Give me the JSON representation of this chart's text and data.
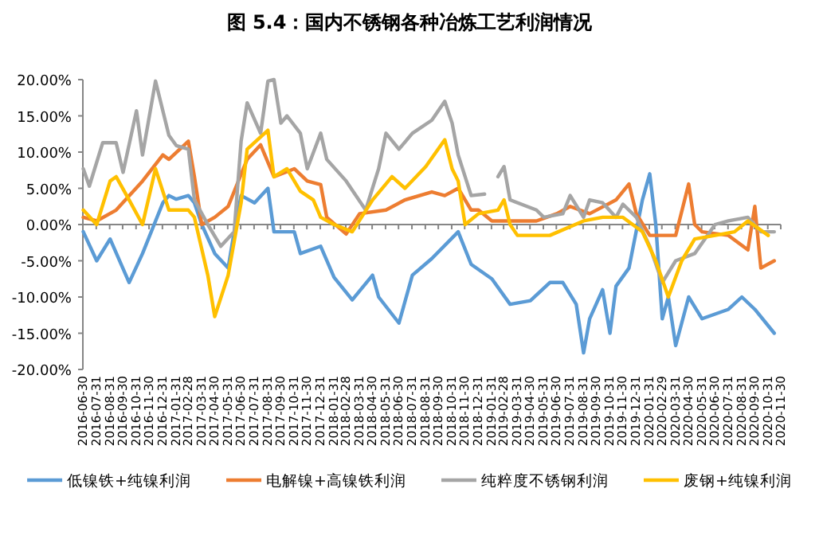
{
  "chart_data": {
    "type": "line",
    "title": "图 5.4：国内不锈钢各种冶炼工艺利润情况",
    "xlim": [
      "2016-06-30",
      "2020-11-30"
    ],
    "xticks": [
      "2016-06-30",
      "2016-07-31",
      "2016-08-31",
      "2016-09-30",
      "2016-10-31",
      "2016-11-30",
      "2016-12-31",
      "2017-01-31",
      "2017-02-28",
      "2017-03-31",
      "2017-04-30",
      "2017-05-31",
      "2017-06-30",
      "2017-07-31",
      "2017-08-31",
      "2017-09-30",
      "2017-10-31",
      "2017-11-30",
      "2017-12-31",
      "2018-01-31",
      "2018-02-28",
      "2018-03-31",
      "2018-04-30",
      "2018-05-31",
      "2018-06-30",
      "2018-07-31",
      "2018-08-31",
      "2018-09-30",
      "2018-10-31",
      "2018-11-30",
      "2018-12-31",
      "2019-01-31",
      "2019-02-28",
      "2019-03-31",
      "2019-04-30",
      "2019-05-31",
      "2019-06-30",
      "2019-07-31",
      "2019-08-31",
      "2019-09-30",
      "2019-10-31",
      "2019-11-30",
      "2019-12-31",
      "2020-01-31",
      "2020-02-29",
      "2020-03-31",
      "2020-04-30",
      "2020-05-31",
      "2020-06-30",
      "2020-07-31",
      "2020-08-31",
      "2020-09-30",
      "2020-10-31",
      "2020-11-30"
    ],
    "ylim": [
      -20,
      20
    ],
    "yticks": [
      {
        "value": -20,
        "label": "-20.00%"
      },
      {
        "value": -15,
        "label": "-15.00%"
      },
      {
        "value": -10,
        "label": "-10.00%"
      },
      {
        "value": -5,
        "label": "-5.00%"
      },
      {
        "value": 0,
        "label": "0.00%"
      },
      {
        "value": 5,
        "label": "5.00%"
      },
      {
        "value": 10,
        "label": "10.00%"
      },
      {
        "value": 15,
        "label": "15.00%"
      },
      {
        "value": 20,
        "label": "20.00%"
      }
    ],
    "legend": "bottom",
    "series": [
      {
        "name": "低镍铁+纯镍利润",
        "color": "#5b9bd5",
        "x": [
          "2016-07-01",
          "2016-08-01",
          "2016-09-01",
          "2016-10-15",
          "2016-11-15",
          "2017-01-01",
          "2017-01-15",
          "2017-02-01",
          "2017-03-01",
          "2017-03-15",
          "2017-04-01",
          "2017-05-01",
          "2017-06-01",
          "2017-06-15",
          "2017-07-01",
          "2017-08-01",
          "2017-09-01",
          "2017-09-15",
          "2017-11-01",
          "2017-11-15",
          "2018-01-01",
          "2018-02-01",
          "2018-03-15",
          "2018-05-01",
          "2018-05-15",
          "2018-07-01",
          "2018-08-01",
          "2018-09-15",
          "2018-11-15",
          "2018-12-15",
          "2019-02-01",
          "2019-03-15",
          "2019-05-01",
          "2019-06-15",
          "2019-07-15",
          "2019-08-15",
          "2019-09-01",
          "2019-09-15",
          "2019-10-15",
          "2019-11-01",
          "2019-11-15",
          "2019-12-15",
          "2020-01-15",
          "2020-02-01",
          "2020-02-15",
          "2020-03-01",
          "2020-03-15",
          "2020-04-01",
          "2020-05-01",
          "2020-06-01",
          "2020-08-01",
          "2020-09-01",
          "2020-10-01",
          "2020-11-15"
        ],
        "values": [
          -1,
          -5,
          -2,
          -8,
          -4,
          3,
          4,
          3.5,
          4,
          3,
          0,
          -4,
          -6,
          -1,
          4,
          3,
          5,
          -1,
          -1,
          -4,
          -3,
          -7.3,
          -10.4,
          -7,
          -10,
          -13.6,
          -7,
          -4.7,
          -1,
          -5.5,
          -7.5,
          -11,
          -10.5,
          -8,
          -8,
          -11,
          -17.7,
          -13,
          -9,
          -15,
          -8.5,
          -6,
          3.4,
          7,
          0,
          -13,
          -10,
          -16.7,
          -10,
          -13,
          -11.7,
          -10,
          -11.7,
          -15
        ]
      },
      {
        "name": "电解镍+高镍铁利润",
        "color": "#ed7d31",
        "x": [
          "2016-07-01",
          "2016-08-01",
          "2016-09-15",
          "2016-11-15",
          "2017-01-01",
          "2017-01-15",
          "2017-03-01",
          "2017-03-15",
          "2017-04-01",
          "2017-05-01",
          "2017-06-01",
          "2017-07-15",
          "2017-08-15",
          "2017-09-15",
          "2017-11-01",
          "2017-12-01",
          "2018-01-01",
          "2018-01-15",
          "2018-03-01",
          "2018-04-01",
          "2018-06-01",
          "2018-07-15",
          "2018-09-15",
          "2018-10-15",
          "2018-11-15",
          "2018-12-15",
          "2019-01-01",
          "2019-02-01",
          "2019-05-15",
          "2019-07-01",
          "2019-08-01",
          "2019-09-15",
          "2019-11-15",
          "2019-12-15",
          "2020-01-01",
          "2020-02-01",
          "2020-04-01",
          "2020-05-01",
          "2020-05-15",
          "2020-06-01",
          "2020-08-01",
          "2020-09-15",
          "2020-10-01",
          "2020-10-15",
          "2020-11-15"
        ],
        "values": [
          1,
          0.5,
          2,
          6,
          9.6,
          9,
          11.5,
          6.6,
          0,
          1,
          2.5,
          9,
          11,
          6.6,
          7.7,
          6,
          5.5,
          1,
          -1.3,
          1.5,
          2,
          3.4,
          4.5,
          4,
          5,
          2,
          2,
          0.5,
          0.5,
          1.5,
          2.5,
          1.5,
          3.4,
          5.6,
          1.5,
          -1.5,
          -1.5,
          5.6,
          0,
          -1,
          -1.5,
          -3.5,
          2.5,
          -6,
          -5
        ]
      },
      {
        "name": "纯粹度不锈钢利润",
        "color": "#a5a5a5",
        "x": [
          "2016-07-01",
          "2016-07-15",
          "2016-08-15",
          "2016-09-15",
          "2016-10-01",
          "2016-11-01",
          "2016-11-15",
          "2016-12-15",
          "2017-01-15",
          "2017-02-01",
          "2017-03-01",
          "2017-03-15",
          "2017-04-15",
          "2017-05-15",
          "2017-06-15",
          "2017-07-01",
          "2017-07-15",
          "2017-08-15",
          "2017-09-01",
          "2017-09-15",
          "2017-10-01",
          "2017-10-15",
          "2017-11-15",
          "2017-12-01",
          "2018-01-01",
          "2018-01-15",
          "2018-03-01",
          "2018-04-15",
          "2018-05-15",
          "2018-06-01",
          "2018-07-01",
          "2018-08-01",
          "2018-09-15",
          "2018-10-15",
          "2018-11-01",
          "2018-11-15",
          "2018-12-15",
          "2019-01-15",
          "2019-02-01",
          "2019-02-15",
          "2019-03-01",
          "2019-03-15",
          "2019-05-15",
          "2019-06-01",
          "2019-07-15",
          "2019-08-01",
          "2019-09-01",
          "2019-09-15",
          "2019-10-15",
          "2019-11-15",
          "2019-12-01",
          "2020-01-01",
          "2020-02-01",
          "2020-03-01",
          "2020-04-01",
          "2020-05-15",
          "2020-07-01",
          "2020-08-01",
          "2020-09-15",
          "2020-10-15",
          "2020-11-15"
        ],
        "values": [
          7.7,
          5.3,
          11.3,
          11.3,
          7.2,
          15.7,
          9.6,
          19.8,
          12.3,
          10.9,
          10.4,
          3.4,
          0,
          -3,
          -1,
          11.5,
          16.8,
          12.6,
          19.8,
          20,
          14,
          15,
          12.6,
          7.7,
          12.6,
          9,
          6,
          2,
          7.7,
          12.6,
          10.4,
          12.6,
          14.4,
          17,
          14,
          9.6,
          4,
          4.2,
          null,
          6.6,
          8,
          3.4,
          2,
          1,
          1.5,
          4,
          1,
          3.4,
          3,
          1,
          2.8,
          1,
          -3,
          -8,
          -5,
          -4,
          0,
          0.5,
          1,
          -1,
          -1
        ]
      },
      {
        "name": "废钢+纯镍利润",
        "color": "#ffc000",
        "x": [
          "2016-07-01",
          "2016-08-01",
          "2016-09-01",
          "2016-09-15",
          "2016-10-15",
          "2016-11-15",
          "2016-12-15",
          "2017-01-15",
          "2017-03-01",
          "2017-03-15",
          "2017-04-15",
          "2017-05-01",
          "2017-06-01",
          "2017-07-01",
          "2017-07-15",
          "2017-09-01",
          "2017-09-15",
          "2017-10-15",
          "2017-11-15",
          "2017-12-15",
          "2018-01-01",
          "2018-02-01",
          "2018-03-15",
          "2018-05-01",
          "2018-06-15",
          "2018-07-15",
          "2018-09-01",
          "2018-10-15",
          "2018-11-01",
          "2018-11-15",
          "2018-12-01",
          "2019-01-01",
          "2019-02-15",
          "2019-03-01",
          "2019-03-15",
          "2019-04-01",
          "2019-06-15",
          "2019-09-01",
          "2019-10-15",
          "2019-12-01",
          "2020-01-15",
          "2020-02-15",
          "2020-03-15",
          "2020-04-15",
          "2020-05-15",
          "2020-07-01",
          "2020-08-15",
          "2020-09-15",
          "2020-11-01"
        ],
        "values": [
          2,
          0,
          6,
          6.6,
          3.4,
          0,
          7.7,
          2,
          2,
          1,
          -7,
          -12.7,
          -7,
          3,
          10.4,
          13,
          6.6,
          7.7,
          4.6,
          3.4,
          1,
          0,
          -1,
          3.4,
          6.6,
          5,
          8,
          11.7,
          7.7,
          6,
          0,
          1.5,
          2,
          3.4,
          0,
          -1.5,
          -1.5,
          0.5,
          1,
          1,
          -1,
          -5,
          -10,
          -5,
          -2,
          -1.5,
          -1,
          0.5,
          -1.5
        ]
      }
    ]
  }
}
